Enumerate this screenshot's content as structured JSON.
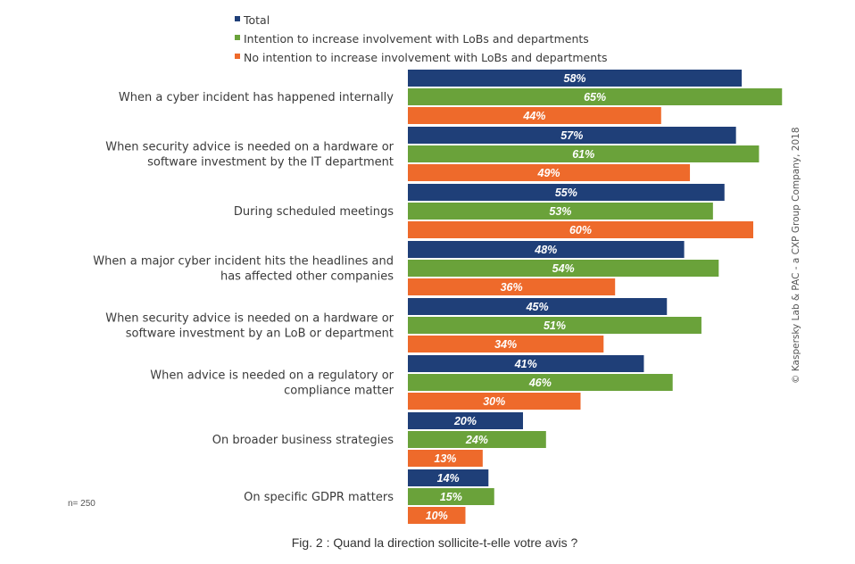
{
  "chart_data": {
    "type": "bar",
    "orientation": "horizontal",
    "categories": [
      [
        "When a cyber incident has happened internally"
      ],
      [
        "When security advice is needed on a hardware or",
        "software investment by the IT department"
      ],
      [
        "During scheduled meetings"
      ],
      [
        "When a major cyber incident hits the headlines and",
        "has affected other companies"
      ],
      [
        "When security advice is needed on a hardware or",
        "software investment by an LoB or department"
      ],
      [
        "When advice is needed on a regulatory or",
        "compliance matter"
      ],
      [
        "On broader business strategies"
      ],
      [
        "On specific GDPR matters"
      ]
    ],
    "series": [
      {
        "name": "Total",
        "color": "#1f3f78",
        "values": [
          58,
          57,
          55,
          48,
          45,
          41,
          20,
          14
        ]
      },
      {
        "name": "Intention to increase involvement with LoBs and departments",
        "color": "#6aa23a",
        "values": [
          65,
          61,
          53,
          54,
          51,
          46,
          24,
          15
        ]
      },
      {
        "name": "No intention to increase involvement with LoBs and departments",
        "color": "#ee6a2b",
        "values": [
          44,
          49,
          60,
          36,
          34,
          30,
          13,
          10
        ]
      }
    ],
    "value_suffix": "%",
    "legend_position": "top",
    "grid": false
  },
  "caption": "Fig. 2 : Quand la direction sollicite-t-elle votre avis ?",
  "sample_note": "n= 250",
  "copyright": "© Kaspersky Lab & PAC - a CXP Group Company, 2018"
}
